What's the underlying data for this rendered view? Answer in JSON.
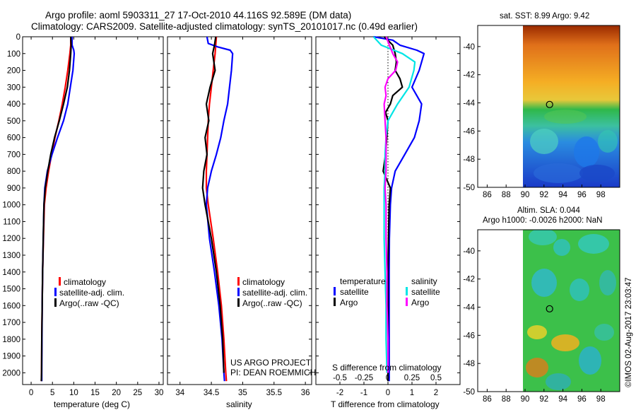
{
  "header": {
    "title_line1": "Argo profile: aoml 5903311_27 17-Oct-2010 44.116S 92.589E (DM data)",
    "title_line2": "Climatology: CARS2009. Satellite-adjusted climatology: synTS_20101017.nc (0.49d earlier)"
  },
  "colors": {
    "climatology": "#ff0000",
    "satellite": "#0000ff",
    "argo": "#000000",
    "sal_satellite": "#00e5e5",
    "sal_argo": "#ff00ff"
  },
  "legend": {
    "climatology": "climatology",
    "satellite": "satellite-adj. clim.",
    "argo": "Argo(..raw -QC)"
  },
  "diff_legend": {
    "temp_title": "temperature",
    "sal_title": "salinity",
    "satellite": "satellite",
    "argo": "Argo"
  },
  "annotation": {
    "project": "US ARGO PROJECT",
    "pi": "PI: DEAN ROEMMICH"
  },
  "map_top": {
    "title": "sat. SST: 8.99 Argo: 9.42"
  },
  "map_bottom": {
    "title_line1": "Altim. SLA: 0.044",
    "title_line2": "Argo h1000: -0.0026 h2000: NaN"
  },
  "credit": "©IMOS 02-Aug-2017 23:03:47",
  "chart_data": [
    {
      "type": "line",
      "xlabel": "temperature (deg C)",
      "ylabel": "",
      "xlim": [
        -2,
        31
      ],
      "ylim": [
        2070,
        0
      ],
      "xticks": [
        0,
        5,
        10,
        15,
        20,
        25,
        30
      ],
      "yticks": [
        0,
        100,
        200,
        300,
        400,
        500,
        600,
        700,
        800,
        900,
        1000,
        1100,
        1200,
        1300,
        1400,
        1500,
        1600,
        1700,
        1800,
        1900,
        2000
      ],
      "series": [
        {
          "name": "climatology",
          "color": "#ff0000",
          "depth": [
            0,
            50,
            100,
            200,
            300,
            400,
            500,
            600,
            700,
            800,
            900,
            1000,
            1200,
            1400,
            1600,
            1800,
            2000,
            2050
          ],
          "values": [
            9.3,
            9.3,
            9.1,
            8.6,
            8.0,
            7.3,
            6.5,
            5.6,
            4.8,
            4.1,
            3.5,
            3.1,
            2.9,
            2.7,
            2.6,
            2.5,
            2.45,
            2.4
          ]
        },
        {
          "name": "satellite-adj. clim.",
          "color": "#0000ff",
          "depth": [
            0,
            50,
            80,
            100,
            200,
            300,
            400,
            500,
            600,
            700,
            800,
            900,
            1000,
            1200,
            1400,
            1600,
            1800,
            2000,
            2050
          ],
          "values": [
            9.6,
            9.6,
            10.0,
            10.1,
            9.8,
            9.2,
            8.6,
            7.6,
            6.2,
            4.9,
            3.8,
            3.2,
            3.0,
            2.85,
            2.7,
            2.6,
            2.55,
            2.5,
            2.5
          ]
        },
        {
          "name": "Argo(..raw -QC)",
          "color": "#000000",
          "depth": [
            0,
            50,
            100,
            200,
            300,
            400,
            500,
            600,
            700,
            800,
            900,
            1000,
            1200,
            1400,
            1600,
            1800,
            2000,
            2050
          ],
          "values": [
            9.3,
            9.4,
            9.3,
            9.0,
            8.5,
            7.6,
            6.6,
            5.5,
            4.6,
            3.9,
            3.3,
            3.0,
            2.85,
            2.7,
            2.6,
            2.5,
            2.45,
            2.4
          ]
        }
      ]
    },
    {
      "type": "line",
      "xlabel": "salinity",
      "ylabel": "",
      "xlim": [
        33.8,
        36.1
      ],
      "ylim": [
        2070,
        0
      ],
      "xticks": [
        34,
        34.5,
        35,
        35.5,
        36
      ],
      "xticklabels": [
        "34",
        "34.5",
        "35",
        "35.5",
        "36"
      ],
      "series": [
        {
          "name": "climatology",
          "color": "#ff0000",
          "depth": [
            0,
            100,
            200,
            300,
            400,
            500,
            600,
            700,
            800,
            900,
            1000,
            1200,
            1400,
            1600,
            1800,
            2000,
            2050
          ],
          "values": [
            34.58,
            34.56,
            34.53,
            34.5,
            34.47,
            34.45,
            34.44,
            34.43,
            34.42,
            34.42,
            34.45,
            34.53,
            34.6,
            34.66,
            34.7,
            34.73,
            34.74
          ]
        },
        {
          "name": "satellite-adj. clim.",
          "color": "#0000ff",
          "depth": [
            0,
            40,
            60,
            80,
            100,
            200,
            300,
            400,
            500,
            600,
            700,
            800,
            900,
            1000,
            1200,
            1400,
            1600,
            1800,
            2000,
            2050
          ],
          "values": [
            34.43,
            34.45,
            34.6,
            34.8,
            34.84,
            34.82,
            34.79,
            34.76,
            34.7,
            34.65,
            34.58,
            34.5,
            34.44,
            34.42,
            34.47,
            34.55,
            34.62,
            34.67,
            34.7,
            34.71
          ]
        },
        {
          "name": "Argo(..raw -QC)",
          "color": "#000000",
          "depth": [
            0,
            50,
            100,
            200,
            300,
            400,
            500,
            600,
            700,
            800,
            900,
            1000,
            1200,
            1400,
            1600,
            1800,
            2000
          ],
          "values": [
            34.57,
            34.55,
            34.52,
            34.56,
            34.48,
            34.42,
            34.46,
            34.4,
            34.43,
            34.38,
            34.36,
            34.4,
            34.5,
            34.58,
            34.64,
            34.68,
            34.7
          ]
        }
      ]
    },
    {
      "type": "line",
      "xlabel": "T difference from climatology",
      "xlabel_top": "S difference from climatology",
      "xlim": [
        -3,
        3
      ],
      "ylim": [
        2070,
        0
      ],
      "xticks": [
        -2,
        -1,
        0,
        1,
        2
      ],
      "xticks_top": [
        -0.5,
        -0.25,
        0,
        0.25,
        0.5
      ],
      "series": [
        {
          "name": "temperature satellite",
          "color": "#0000ff",
          "depth": [
            0,
            20,
            50,
            80,
            100,
            150,
            200,
            300,
            400,
            500,
            600,
            700,
            800,
            900,
            1000,
            1200,
            1400,
            1600,
            1800,
            2000,
            2050
          ],
          "values": [
            -0.6,
            0.2,
            0.5,
            1.2,
            1.5,
            1.4,
            1.3,
            1.0,
            1.4,
            1.3,
            1.1,
            0.7,
            0.3,
            0.15,
            0.1,
            0.06,
            0.05,
            0.05,
            0.05,
            0.05,
            0.05
          ]
        },
        {
          "name": "temperature Argo",
          "color": "#000000",
          "depth": [
            0,
            50,
            100,
            150,
            200,
            250,
            300,
            350,
            400,
            450,
            500,
            600,
            700,
            800,
            900,
            1000,
            1200,
            1400,
            1600,
            1800,
            2000,
            2050
          ],
          "values": [
            -0.15,
            0.2,
            0.3,
            0.35,
            0.3,
            0.5,
            0.6,
            0.2,
            0.1,
            -0.1,
            0.0,
            -0.05,
            -0.1,
            -0.2,
            0.1,
            0.05,
            0.02,
            0.0,
            0.0,
            0.0,
            0.0,
            0.0
          ]
        },
        {
          "name": "salinity satellite",
          "color": "#00e5e5",
          "depth": [
            0,
            50,
            100,
            150,
            200,
            300,
            400,
            500,
            600,
            700,
            800,
            900,
            1000,
            1200,
            1400,
            1600,
            1800,
            2000
          ],
          "values": [
            -0.15,
            -0.07,
            0.15,
            0.28,
            0.27,
            0.22,
            0.1,
            0.0,
            -0.02,
            -0.03,
            -0.03,
            -0.04,
            -0.04,
            -0.04,
            -0.03,
            -0.02,
            -0.02,
            -0.01
          ]
        },
        {
          "name": "salinity Argo",
          "color": "#ff00ff",
          "depth": [
            0,
            100,
            150,
            200,
            250,
            300,
            350,
            400,
            500,
            600,
            700,
            800,
            900,
            1000,
            1200,
            1400,
            1600,
            1800,
            2000
          ],
          "values": [
            -0.02,
            0.05,
            0.1,
            0.08,
            0.0,
            -0.03,
            -0.02,
            -0.04,
            -0.03,
            -0.02,
            -0.02,
            -0.02,
            -0.03,
            -0.02,
            -0.02,
            -0.01,
            -0.01,
            0.0,
            0.0
          ]
        }
      ]
    },
    {
      "type": "heatmap",
      "title": "sat. SST: 8.99 Argo: 9.42",
      "xlim": [
        85,
        100
      ],
      "ylim": [
        -50,
        -38.5
      ],
      "xticks": [
        86,
        88,
        90,
        92,
        94,
        96,
        98
      ],
      "yticks": [
        -50,
        -48,
        -46,
        -44,
        -42,
        -40
      ],
      "data_xrange": [
        90,
        100
      ],
      "marker": {
        "lon": 92.589,
        "lat": -44.116
      }
    },
    {
      "type": "heatmap",
      "title": "Altim. SLA: 0.044",
      "subtitle": "Argo h1000: -0.0026 h2000: NaN",
      "xlim": [
        85,
        100
      ],
      "ylim": [
        -50,
        -38.5
      ],
      "xticks": [
        86,
        88,
        90,
        92,
        94,
        96,
        98
      ],
      "yticks": [
        -50,
        -48,
        -46,
        -44,
        -42,
        -40
      ],
      "data_xrange": [
        90,
        100
      ],
      "marker": {
        "lon": 92.589,
        "lat": -44.116
      }
    }
  ]
}
